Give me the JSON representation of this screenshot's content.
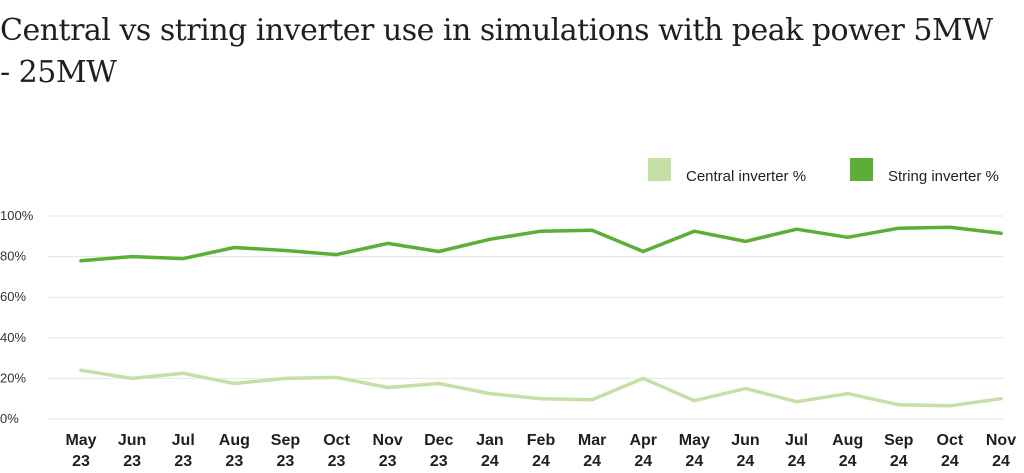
{
  "chart_data": {
    "type": "line",
    "title": "Central vs string inverter use in simulations with peak power 5MW - 25MW",
    "categories": [
      [
        "May",
        "23"
      ],
      [
        "Jun",
        "23"
      ],
      [
        "Jul",
        "23"
      ],
      [
        "Aug",
        "23"
      ],
      [
        "Sep",
        "23"
      ],
      [
        "Oct",
        "23"
      ],
      [
        "Nov",
        "23"
      ],
      [
        "Dec",
        "23"
      ],
      [
        "Jan",
        "24"
      ],
      [
        "Feb",
        "24"
      ],
      [
        "Mar",
        "24"
      ],
      [
        "Apr",
        "24"
      ],
      [
        "May",
        "24"
      ],
      [
        "Jun",
        "24"
      ],
      [
        "Jul",
        "24"
      ],
      [
        "Aug",
        "24"
      ],
      [
        "Sep",
        "24"
      ],
      [
        "Oct",
        "24"
      ],
      [
        "Nov",
        "24"
      ]
    ],
    "ylim": [
      0,
      100
    ],
    "yticks": [
      0,
      20,
      40,
      60,
      80,
      100
    ],
    "ytick_suffix": "%",
    "grid": true,
    "legend_position": "top-right",
    "series": [
      {
        "name": "Central inverter %",
        "color": "#c5e0a5",
        "values": [
          24,
          20,
          22.5,
          17.5,
          20,
          20.5,
          15.5,
          17.5,
          12.5,
          10,
          9.5,
          20,
          9,
          15,
          8.5,
          12.5,
          7,
          6.5,
          10
        ]
      },
      {
        "name": "String inverter %",
        "color": "#5aaf34",
        "values": [
          78,
          80,
          79,
          84.5,
          83,
          81,
          86.5,
          82.5,
          88.5,
          92.5,
          93,
          82.5,
          92.5,
          87.5,
          93.5,
          89.5,
          94,
          94.5,
          91.5
        ]
      }
    ]
  }
}
